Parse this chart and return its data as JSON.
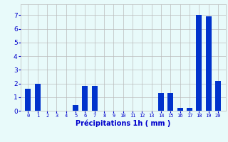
{
  "categories": [
    0,
    1,
    2,
    3,
    4,
    5,
    6,
    7,
    8,
    9,
    10,
    11,
    12,
    13,
    14,
    15,
    16,
    17,
    18,
    19,
    20
  ],
  "values": [
    1.6,
    2.0,
    0.0,
    0.0,
    0.0,
    0.4,
    1.8,
    1.8,
    0.0,
    0.0,
    0.0,
    0.0,
    0.0,
    0.0,
    1.3,
    1.3,
    0.2,
    0.2,
    7.0,
    6.9,
    2.2
  ],
  "bar_color": "#0033cc",
  "background_color": "#e8fafa",
  "grid_color": "#bbbbbb",
  "xlabel": "Précipitations 1h ( mm )",
  "xlabel_color": "#0000cc",
  "tick_color": "#0000cc",
  "ylim": [
    0,
    7.8
  ],
  "yticks": [
    0,
    1,
    2,
    3,
    4,
    5,
    6,
    7
  ],
  "figsize": [
    3.2,
    2.0
  ],
  "dpi": 100
}
